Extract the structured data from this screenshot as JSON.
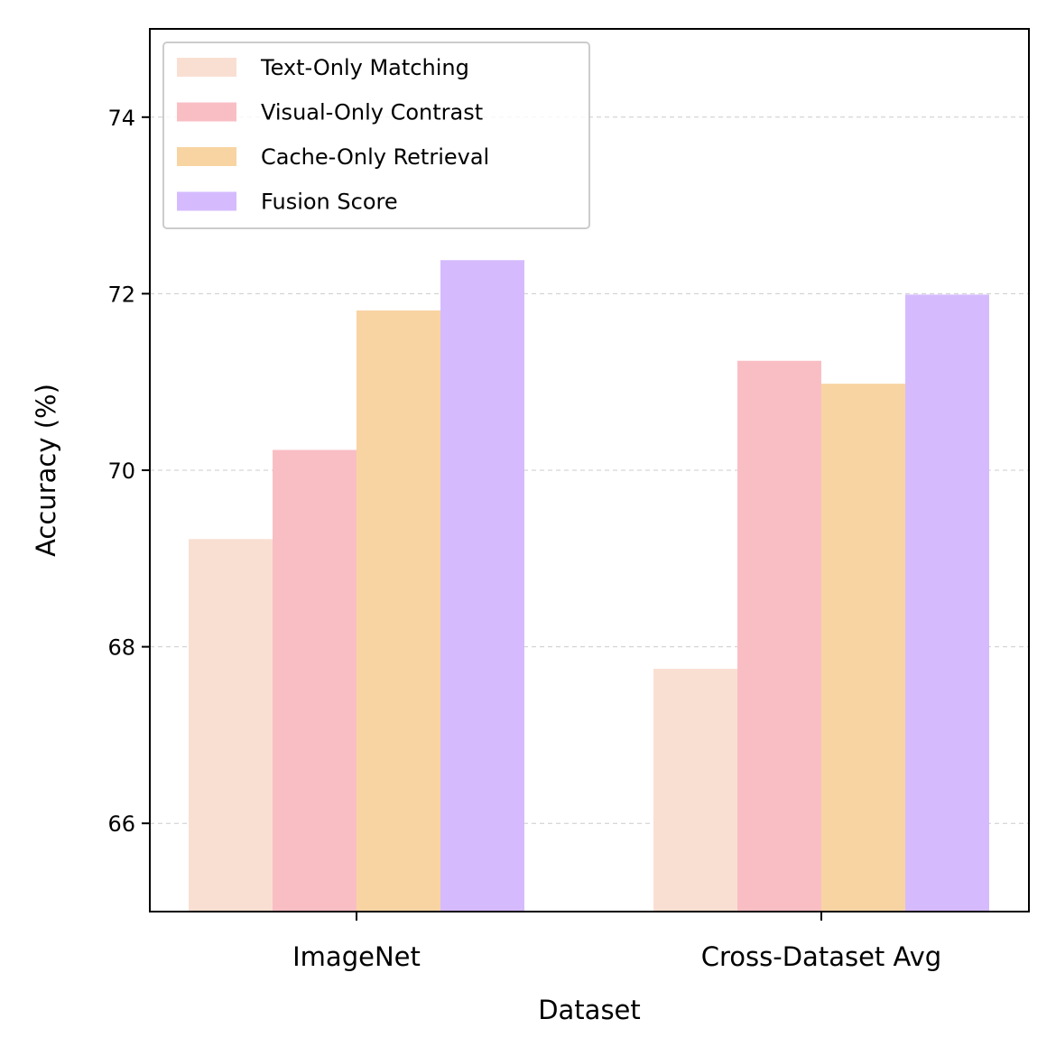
{
  "chart_data": {
    "type": "bar",
    "title": "",
    "xlabel": "Dataset",
    "ylabel": "Accuracy (%)",
    "ylim": [
      65,
      75
    ],
    "yticks": [
      66,
      68,
      70,
      72,
      74
    ],
    "grid": "y-dashed",
    "legend_position": "top-left",
    "categories": [
      "ImageNet",
      "Cross-Dataset Avg"
    ],
    "series": [
      {
        "name": "Text-Only Matching",
        "color": "#f9dfd2",
        "values": [
          69.22,
          67.75
        ]
      },
      {
        "name": "Visual-Only Contrast",
        "color": "#f9bec4",
        "values": [
          70.23,
          71.24
        ]
      },
      {
        "name": "Cache-Only Retrieval",
        "color": "#f8d4a3",
        "values": [
          71.81,
          70.98
        ]
      },
      {
        "name": "Fusion Score",
        "color": "#d5bbfe",
        "values": [
          72.38,
          71.99
        ]
      }
    ]
  }
}
